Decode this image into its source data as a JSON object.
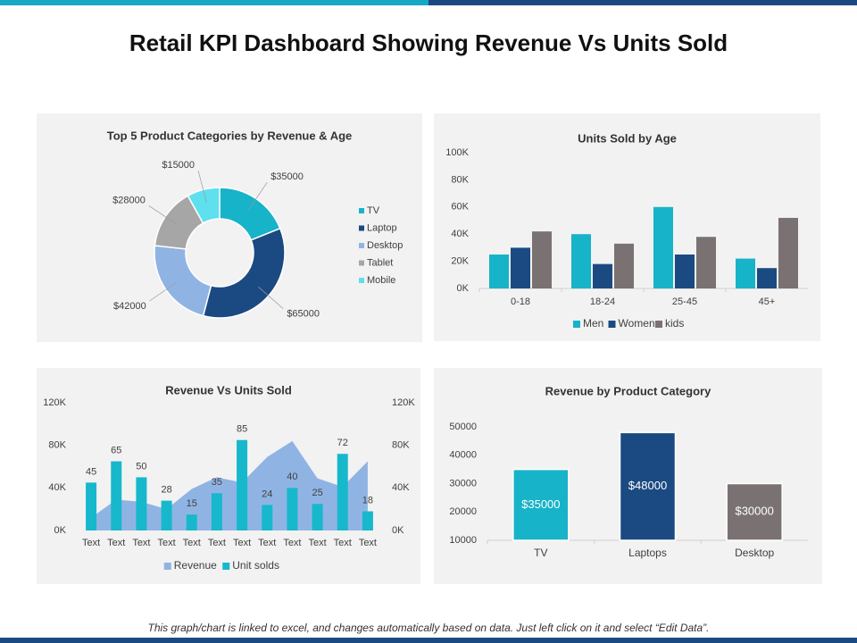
{
  "title": "Retail KPI Dashboard Showing Revenue Vs Units Sold",
  "footer": "This graph/chart is linked to excel, and changes automatically based on data. Just left click on it and select “Edit Data”.",
  "chart_data": [
    {
      "type": "donut",
      "title": "Top 5 Product Categories by Revenue & Age",
      "categories": [
        "TV",
        "Laptop",
        "Desktop",
        "Tablet",
        "Mobile"
      ],
      "values": [
        35000,
        65000,
        42000,
        28000,
        15000
      ],
      "value_labels": [
        "$35000",
        "$65000",
        "$42000",
        "$28000",
        "$15000"
      ],
      "colors": [
        "#17b3c8",
        "#1b4a82",
        "#8fb4e3",
        "#a6a6a6",
        "#5ee0ef"
      ],
      "legend": "right"
    },
    {
      "type": "bar",
      "title": "Units Sold by Age",
      "categories": [
        "0-18",
        "18-24",
        "25-45",
        "45+"
      ],
      "series": [
        {
          "name": "Men",
          "color": "#17b3c8",
          "values": [
            25,
            40,
            60,
            22
          ]
        },
        {
          "name": "Women",
          "color": "#1b4a82",
          "values": [
            30,
            18,
            25,
            15
          ]
        },
        {
          "name": "kids",
          "color": "#7a7272",
          "values": [
            42,
            33,
            38,
            52
          ]
        }
      ],
      "ylim": [
        0,
        100
      ],
      "yticks": [
        {
          "value": 0,
          "label": "0K"
        },
        {
          "value": 20,
          "label": "20K"
        },
        {
          "value": 40,
          "label": "40K"
        },
        {
          "value": 60,
          "label": "60K"
        },
        {
          "value": 80,
          "label": "80K"
        },
        {
          "value": 100,
          "label": "100K"
        }
      ],
      "legend": "bottom"
    },
    {
      "type": "combo",
      "title": "Revenue Vs Units Sold",
      "categories": [
        "Text",
        "Text",
        "Text",
        "Text",
        "Text",
        "Text",
        "Text",
        "Text",
        "Text",
        "Text",
        "Text",
        "Text"
      ],
      "series": [
        {
          "name": "Revenue",
          "type": "area",
          "color": "#8fb4e3",
          "values": [
            12,
            29,
            27,
            20,
            39,
            50,
            45,
            69,
            84,
            49,
            41,
            65
          ]
        },
        {
          "name": "Unit solds",
          "type": "bar",
          "axis": "y2",
          "color": "#17b8cc",
          "values": [
            45,
            65,
            50,
            28,
            15,
            35,
            85,
            24,
            40,
            25,
            72,
            18
          ]
        }
      ],
      "ylim": [
        0,
        120
      ],
      "yticks": [
        {
          "value": 0,
          "label": "0K"
        },
        {
          "value": 40,
          "label": "40K"
        },
        {
          "value": 80,
          "label": "80K"
        },
        {
          "value": 120,
          "label": "120K"
        }
      ],
      "y2lim": [
        0,
        120
      ],
      "y2ticks": [
        {
          "value": 0,
          "label": "0K"
        },
        {
          "value": 40,
          "label": "40K"
        },
        {
          "value": 80,
          "label": "80K"
        },
        {
          "value": 120,
          "label": "120K"
        }
      ],
      "legend": "bottom"
    },
    {
      "type": "bar",
      "title": "Revenue by Product Category",
      "categories": [
        "TV",
        "Laptops",
        "Desktop"
      ],
      "values": [
        35000,
        48000,
        30000
      ],
      "value_labels": [
        "$35000",
        "$48000",
        "$30000"
      ],
      "colors": [
        "#17b3c8",
        "#1b4a82",
        "#7a7272"
      ],
      "ylim": [
        10000,
        50000
      ],
      "yticks": [
        10000,
        20000,
        30000,
        40000,
        50000
      ]
    }
  ]
}
